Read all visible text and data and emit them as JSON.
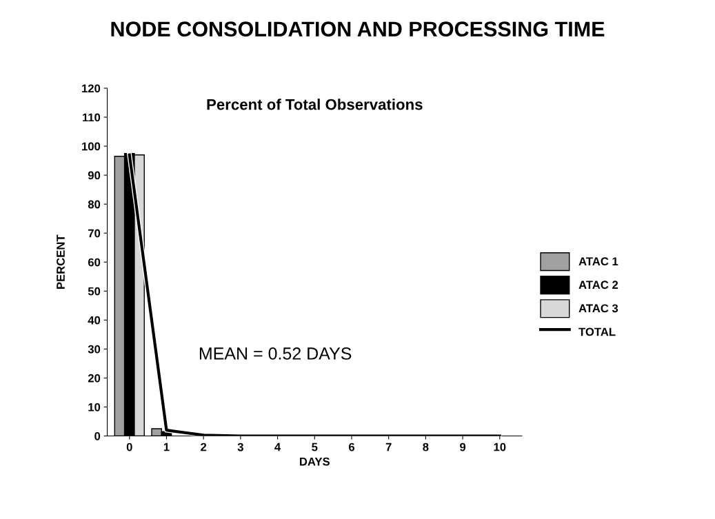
{
  "chart_data": {
    "type": "bar",
    "title": "NODE CONSOLIDATION AND PROCESSING TIME",
    "subtitle": "Percent of Total Observations",
    "xlabel": "DAYS",
    "ylabel": "PERCENT",
    "categories": [
      "0",
      "1",
      "2",
      "3",
      "4",
      "5",
      "6",
      "7",
      "8",
      "9",
      "10"
    ],
    "series": [
      {
        "name": "ATAC 1",
        "color": "#a0a0a0",
        "values": [
          96.5,
          2.5,
          null,
          0,
          0,
          0,
          0,
          0,
          0,
          0,
          0
        ]
      },
      {
        "name": "ATAC 2",
        "color": "#000000",
        "values": [
          97.5,
          1.5,
          null,
          0,
          0,
          0,
          0,
          0,
          0,
          0,
          0
        ]
      },
      {
        "name": "ATAC 3",
        "color": "#d8d8d8",
        "values": [
          97,
          null,
          null,
          0,
          0,
          0,
          0,
          0,
          0,
          0,
          0
        ]
      },
      {
        "name": "TOTAL",
        "type": "line",
        "color": "#000000",
        "values": [
          97,
          2,
          0.3,
          0,
          0,
          0,
          0,
          0,
          0,
          0,
          0
        ]
      }
    ],
    "ylim": [
      0,
      120
    ],
    "yticks": [
      0,
      10,
      20,
      30,
      40,
      50,
      60,
      70,
      80,
      90,
      100,
      110,
      120
    ],
    "annotations": [
      "MEAN = 0.52 DAYS"
    ],
    "legend": "right",
    "grid": false,
    "marker": "none",
    "line_style": "solid"
  }
}
